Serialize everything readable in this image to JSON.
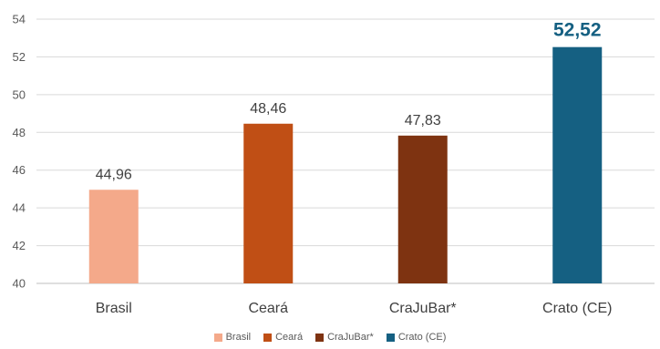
{
  "chart_data": {
    "type": "bar",
    "categories": [
      "Brasil",
      "Ceará",
      "CraJuBar*",
      "Crato (CE)"
    ],
    "values": [
      44.96,
      48.46,
      47.83,
      52.52
    ],
    "value_labels": [
      "44,96",
      "48,46",
      "47,83",
      "52,52"
    ],
    "colors": [
      "#F4A98A",
      "#C04F15",
      "#7E3311",
      "#156082"
    ],
    "highlight_index": 3,
    "ylim": [
      40,
      54
    ],
    "yticks": [
      "40",
      "42",
      "44",
      "46",
      "48",
      "50",
      "52",
      "54"
    ],
    "ytick_values": [
      40,
      42,
      44,
      46,
      48,
      50,
      52,
      54
    ],
    "grid": true,
    "legend_position": "bottom",
    "legend": [
      "Brasil",
      "Ceará",
      "CraJuBar*",
      "Crato (CE)"
    ]
  }
}
